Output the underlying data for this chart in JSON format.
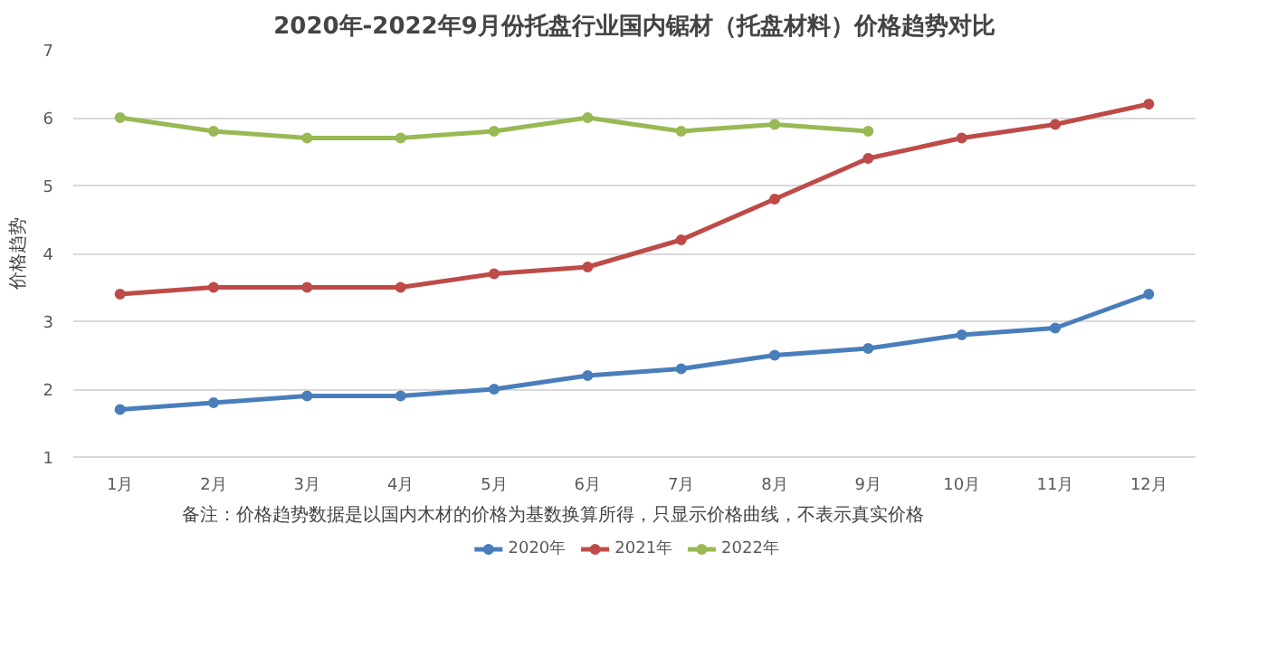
{
  "chart_data": {
    "type": "line",
    "title": "2020年-2022年9月份托盘行业国内锯材（托盘材料）价格趋势对比",
    "ylabel": "价格趋势",
    "categories": [
      "1月",
      "2月",
      "3月",
      "4月",
      "5月",
      "6月",
      "7月",
      "8月",
      "9月",
      "10月",
      "11月",
      "12月"
    ],
    "series": [
      {
        "name": "2020年",
        "color": "#4a7ebb",
        "values": [
          1.7,
          1.8,
          1.9,
          1.9,
          2.0,
          2.2,
          2.3,
          2.5,
          2.6,
          2.8,
          2.9,
          3.4
        ]
      },
      {
        "name": "2021年",
        "color": "#be4b48",
        "values": [
          3.4,
          3.5,
          3.5,
          3.5,
          3.7,
          3.8,
          4.2,
          4.8,
          5.4,
          5.7,
          5.9,
          6.2
        ]
      },
      {
        "name": "2022年",
        "color": "#98b954",
        "values": [
          6.0,
          5.8,
          5.7,
          5.7,
          5.8,
          6.0,
          5.8,
          5.9,
          5.8,
          null,
          null,
          null
        ]
      }
    ],
    "ylim": [
      1,
      7
    ],
    "yticks": [
      1,
      2,
      3,
      4,
      5,
      6,
      7
    ],
    "grid": "y",
    "legend": "bottom",
    "marker": "circle",
    "line_style": "solid",
    "annotations": [
      "备注：价格趋势数据是以国内木材的价格为基数换算所得，只显示价格曲线，不表示真实价格"
    ]
  }
}
